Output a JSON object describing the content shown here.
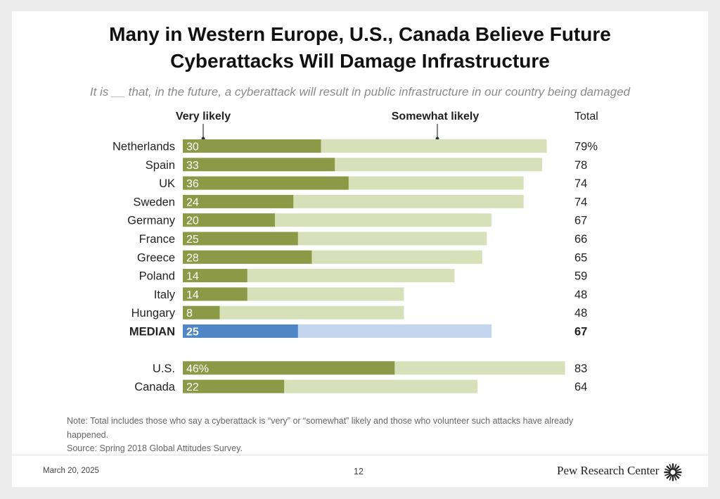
{
  "title_line1": "Many in Western Europe, U.S., Canada Believe Future",
  "title_line2": "Cyberattacks Will Damage Infrastructure",
  "chart_data": {
    "type": "bar",
    "orientation": "horizontal",
    "stacked": true,
    "subtitle": "It is __ that, in the future, a cyberattack will result in public infrastructure in our country being damaged",
    "legend": {
      "very_likely": "Very likely",
      "somewhat_likely": "Somewhat likely"
    },
    "total_header": "Total",
    "rows": [
      {
        "label": "Netherlands",
        "very": 30,
        "very_label": "30",
        "total": 79,
        "total_label": "79%"
      },
      {
        "label": "Spain",
        "very": 33,
        "very_label": "33",
        "total": 78,
        "total_label": "78"
      },
      {
        "label": "UK",
        "very": 36,
        "very_label": "36",
        "total": 74,
        "total_label": "74"
      },
      {
        "label": "Sweden",
        "very": 24,
        "very_label": "24",
        "total": 74,
        "total_label": "74"
      },
      {
        "label": "Germany",
        "very": 20,
        "very_label": "20",
        "total": 67,
        "total_label": "67"
      },
      {
        "label": "France",
        "very": 25,
        "very_label": "25",
        "total": 66,
        "total_label": "66"
      },
      {
        "label": "Greece",
        "very": 28,
        "very_label": "28",
        "total": 65,
        "total_label": "65"
      },
      {
        "label": "Poland",
        "very": 14,
        "very_label": "14",
        "total": 59,
        "total_label": "59"
      },
      {
        "label": "Italy",
        "very": 14,
        "very_label": "14",
        "total": 48,
        "total_label": "48"
      },
      {
        "label": "Hungary",
        "very": 8,
        "very_label": "8",
        "total": 48,
        "total_label": "48"
      },
      {
        "label": "MEDIAN",
        "very": 25,
        "very_label": "25",
        "total": 67,
        "total_label": "67",
        "median": true
      },
      {
        "label": "U.S.",
        "very": 46,
        "very_label": "46%",
        "total": 83,
        "total_label": "83",
        "gap_before": true
      },
      {
        "label": "Canada",
        "very": 22,
        "very_label": "22",
        "total": 64,
        "total_label": "64"
      }
    ],
    "colors": {
      "very": "#8c9a48",
      "somewhat": "#d7e0b8",
      "median_very": "#4f86c6",
      "median_somewhat": "#c3d6ee"
    }
  },
  "note_line": "Note: Total includes those who say a cyberattack is “very” or “somewhat” likely and those who volunteer such attacks have already happened.",
  "source_line": "Source: Spring 2018 Global Attitudes Survey.",
  "footer": {
    "date": "March 20, 2025",
    "page": "12",
    "brand": "Pew Research Center"
  }
}
